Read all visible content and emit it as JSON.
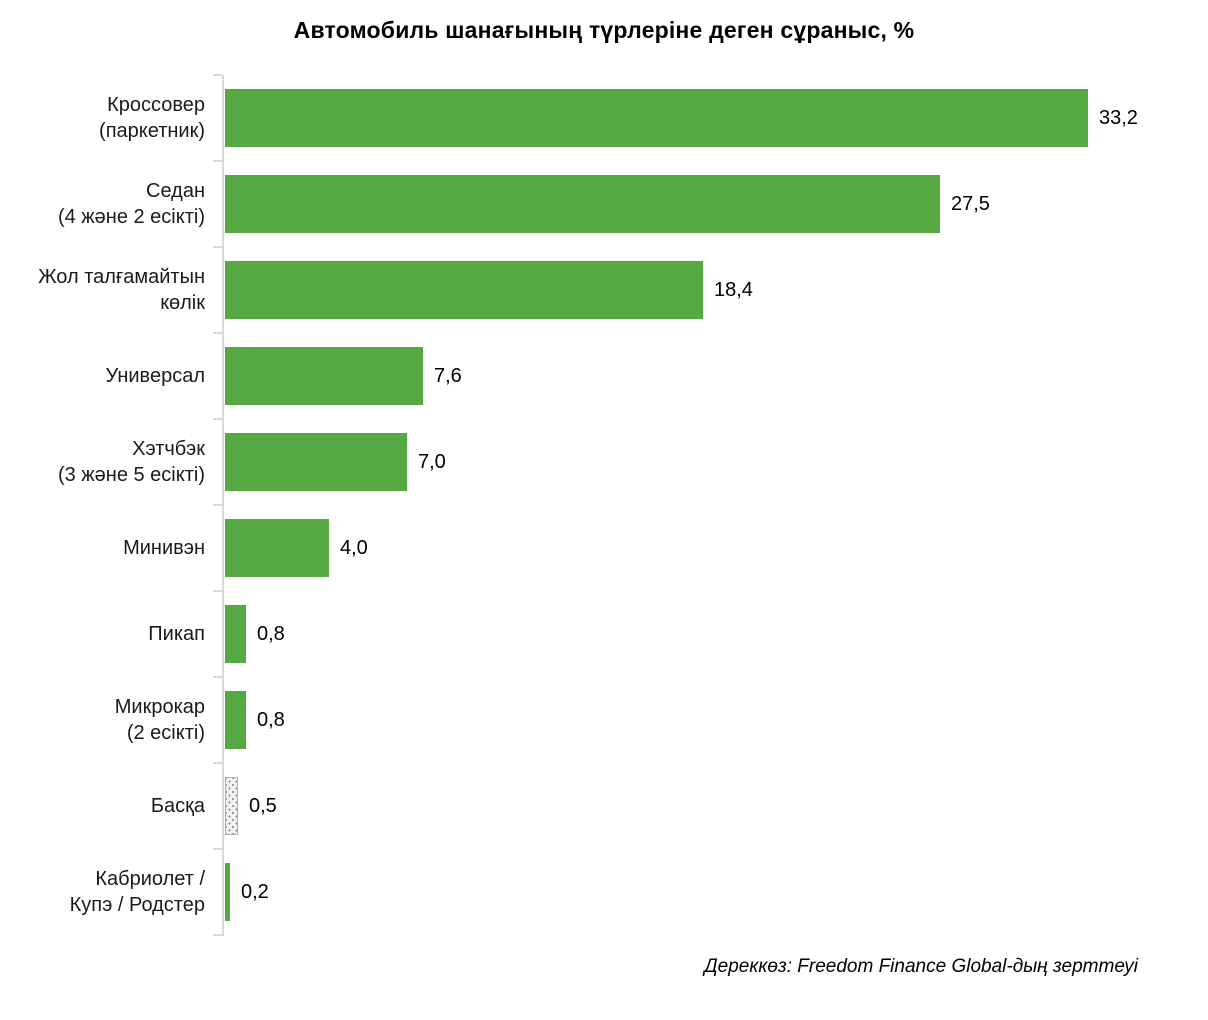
{
  "title": "Автомобиль шанағының түрлеріне деген сұраныс, %",
  "source_note": "Дереккөз: Freedom Finance Global-дың зерттеуі",
  "colors": {
    "bar": "#56a843",
    "pattern_bar_background": "#f2f2f2",
    "pattern_bar_dots": "#858585",
    "pattern_bar_border": "#b0b0b0",
    "axis": "#d9d9d9",
    "text": "#1a1a1a"
  },
  "chart_data": {
    "type": "bar",
    "orientation": "horizontal",
    "title": "Автомобиль шанағының түрлеріне деген сұраныс, %",
    "categories": [
      "Кроссовер\n(паркетник)",
      "Седан\n(4 және 2 есікті)",
      "Жол талғамайтын\nкөлік",
      "Универсал",
      "Хэтчбэк\n(3 және 5 есікті)",
      "Минивэн",
      "Пикап",
      "Микрокар\n(2 есікті)",
      "Басқа",
      "Кабриолет /\nКупэ / Родстер"
    ],
    "values": [
      33.2,
      27.5,
      18.4,
      7.6,
      7.0,
      4.0,
      0.8,
      0.8,
      0.5,
      0.2
    ],
    "value_labels": [
      "33,2",
      "27,5",
      "18,4",
      "7,6",
      "7,0",
      "4,0",
      "0,8",
      "0,8",
      "0,5",
      "0,2"
    ],
    "bar_styles": [
      "solid",
      "solid",
      "solid",
      "solid",
      "solid",
      "solid",
      "solid",
      "solid",
      "dotted-pattern",
      "solid"
    ],
    "xlabel": "",
    "ylabel": "",
    "xlim": [
      0,
      34
    ],
    "grid": false,
    "legend": false,
    "value_labels_position": "end-of-bar",
    "source": "Дереккөз: Freedom Finance Global-дың зерттеуі"
  }
}
